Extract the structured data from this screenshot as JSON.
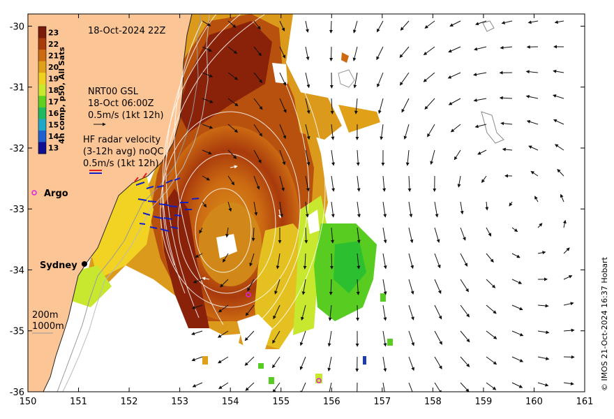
{
  "title": "18-Oct-2024 22Z",
  "axes": {
    "x_ticks": [
      "150",
      "151",
      "152",
      "153",
      "154",
      "155",
      "156",
      "157",
      "158",
      "159",
      "160",
      "161"
    ],
    "y_ticks": [
      "-30",
      "-31",
      "-32",
      "-33",
      "-34",
      "-35",
      "-36"
    ],
    "lon_range": [
      150,
      161
    ],
    "lat_range": [
      -36,
      -29.8
    ]
  },
  "colorbar": {
    "label": "4h comp, p50, All Sats",
    "ticks": [
      "23",
      "22",
      "21",
      "20",
      "19",
      "18",
      "17",
      "16",
      "15",
      "14",
      "13"
    ],
    "colors": [
      "#7a1a08",
      "#a83a0c",
      "#cc6a12",
      "#e0a018",
      "#f0d020",
      "#c8e830",
      "#60d020",
      "#20b860",
      "#20a8c8",
      "#2060d0",
      "#101090"
    ]
  },
  "legend": {
    "nrt_lines": [
      "NRT00 GSL",
      "18-Oct 06:00Z",
      "0.5m/s (1kt 12h)"
    ],
    "hf_lines": [
      "HF radar velocity",
      "(3-12h avg) noQC",
      "0.5m/s (1kt 12h)"
    ]
  },
  "places": {
    "argo": "Argo",
    "sydney": "Sydney"
  },
  "depth_legend": [
    "200m",
    "1000m"
  ],
  "credit": "© IMOS 21-Oct-2024 16:37 Hobart",
  "colors": {
    "land": "#fcc596",
    "arrow": "#111111",
    "hf_radar": "#1020c8",
    "argo": "#e020e0",
    "contour": "#ffffff"
  }
}
